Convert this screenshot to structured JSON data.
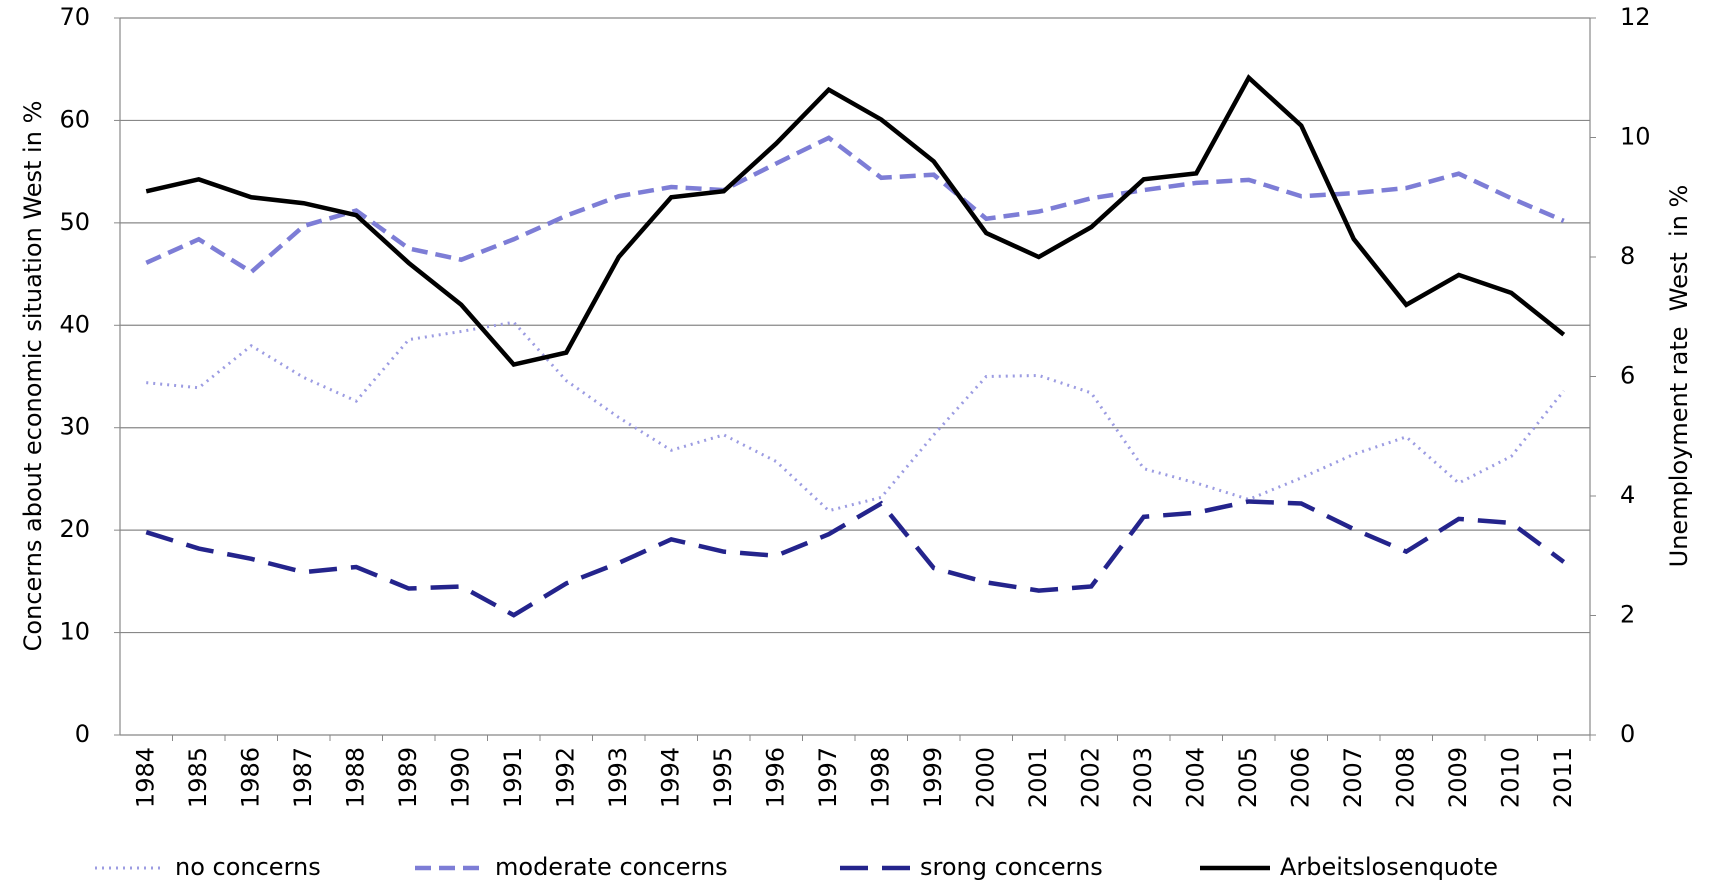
{
  "chart_data": {
    "type": "line",
    "y_label": "Concerns about economic situation West in %",
    "y2_label": "Unemployment rate  West  in %",
    "x": [
      1984,
      1985,
      1986,
      1987,
      1988,
      1989,
      1990,
      1991,
      1992,
      1993,
      1994,
      1995,
      1996,
      1997,
      1998,
      1999,
      2000,
      2001,
      2002,
      2003,
      2004,
      2005,
      2006,
      2007,
      2008,
      2009,
      2010,
      2011
    ],
    "ylim": [
      0,
      70
    ],
    "yticks": [
      0,
      10,
      20,
      30,
      40,
      50,
      60,
      70
    ],
    "y2lim": [
      0,
      12
    ],
    "y2ticks": [
      0,
      2,
      4,
      6,
      8,
      10,
      12
    ],
    "grid": true,
    "legend": "bottom",
    "series": [
      {
        "name": "no concerns",
        "color": "#9c9ce2",
        "style": "dotted",
        "values": [
          34.4,
          33.9,
          38.0,
          34.9,
          32.6,
          38.6,
          39.4,
          40.3,
          34.6,
          31.0,
          27.8,
          29.3,
          26.7,
          21.9,
          23.2,
          29.3,
          35.0,
          35.1,
          33.4,
          26.0,
          24.6,
          23.0,
          25.1,
          27.4,
          29.1,
          24.6,
          27.2,
          33.6
        ]
      },
      {
        "name": "moderate concerns",
        "color": "#7d7dd6",
        "style": "dashed",
        "values": [
          46.1,
          48.4,
          45.2,
          49.7,
          51.2,
          47.5,
          46.4,
          48.4,
          50.7,
          52.6,
          53.5,
          53.2,
          55.8,
          58.3,
          54.4,
          54.7,
          50.4,
          51.1,
          52.4,
          53.2,
          53.9,
          54.2,
          52.6,
          52.9,
          53.4,
          54.8,
          52.4,
          50.2
        ]
      },
      {
        "name": "srong concerns",
        "color": "#24248c",
        "style": "longdash",
        "values": [
          19.8,
          18.2,
          17.2,
          15.9,
          16.4,
          14.3,
          14.5,
          11.7,
          14.8,
          16.8,
          19.1,
          17.9,
          17.5,
          19.6,
          22.6,
          16.3,
          14.9,
          14.1,
          14.5,
          21.3,
          21.7,
          22.8,
          22.6,
          20.1,
          17.9,
          21.1,
          20.7,
          16.9
        ]
      },
      {
        "name": "Arbeitslosenquote",
        "color": "#000000",
        "style": "solid",
        "axis": "y2",
        "values": [
          9.1,
          9.3,
          9.0,
          8.9,
          8.7,
          7.9,
          7.2,
          6.2,
          6.4,
          8.0,
          9.0,
          9.1,
          9.9,
          10.8,
          10.3,
          9.6,
          8.4,
          8.0,
          8.5,
          9.3,
          9.4,
          11.0,
          10.2,
          8.3,
          7.2,
          7.7,
          7.4,
          6.7
        ]
      }
    ]
  }
}
